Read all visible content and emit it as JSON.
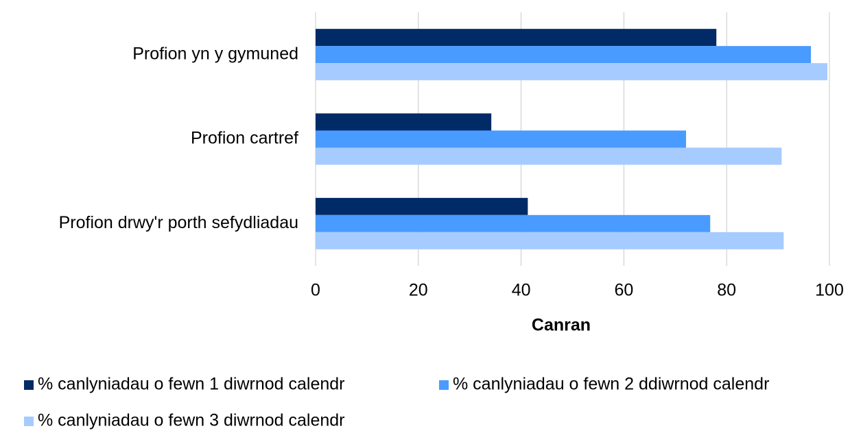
{
  "chart_data": {
    "type": "hbar",
    "categories": [
      "Profion yn y gymuned",
      "Profion cartref",
      "Profion drwy'r porth sefydliadau"
    ],
    "series": [
      {
        "name": "% canlyniadau o fewn 1 diwrnod calendr",
        "color": "#002b66",
        "values": [
          78.0,
          34.2,
          41.3
        ]
      },
      {
        "name": "% canlyniadau o fewn 2 ddiwrnod calendr",
        "color": "#4a9bff",
        "values": [
          96.4,
          72.1,
          76.8
        ]
      },
      {
        "name": "% canlyniadau o fewn 3 diwrnod calendr",
        "color": "#a6cbff",
        "values": [
          99.6,
          90.7,
          91.1
        ]
      }
    ],
    "x_label": "Canran",
    "xlim": [
      0,
      100
    ],
    "xticks": [
      0,
      20,
      40,
      60,
      80,
      100
    ],
    "grid": true,
    "legend": "bottom"
  }
}
